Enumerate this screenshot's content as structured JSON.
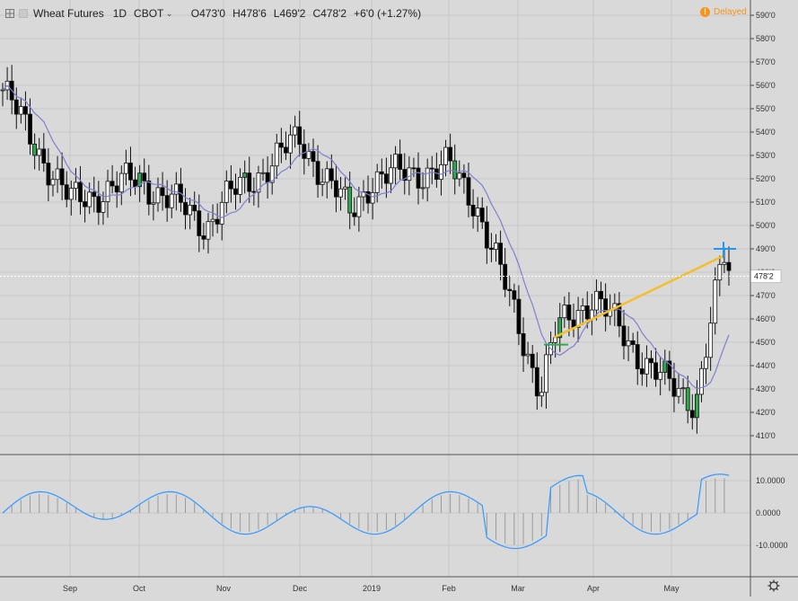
{
  "header": {
    "symbol": "Wheat Futures",
    "interval": "1D",
    "exchange": "CBOT",
    "open": "O473'0",
    "high": "H478'6",
    "low": "L469'2",
    "close": "C478'2",
    "change": "+6'0 (+1.27%)",
    "delayed_label": "Delayed",
    "delayed_icon": "clock-icon"
  },
  "price_label": "478'2",
  "colors": {
    "background": "#d9d9d9",
    "candle_up": "#ffffff",
    "candle_down": "#000000",
    "candle_highlight": "#2fa84f",
    "moving_average": "#7f7fd0",
    "trendline": "#f5bf2a",
    "marker_blue": "#2196f3",
    "marker_green": "#2fa84f",
    "oscillator": "#3399ff",
    "grid": "#c6c6c6",
    "price_line": "#ffffff"
  },
  "chart_data": [
    {
      "type": "candlestick",
      "title": "Wheat Futures 1D CBOT",
      "y_axis_ticks": [
        "590'0",
        "580'0",
        "570'0",
        "560'0",
        "550'0",
        "540'0",
        "530'0",
        "520'0",
        "510'0",
        "500'0",
        "490'0",
        "480'0",
        "470'0",
        "460'0",
        "450'0",
        "440'0",
        "430'0",
        "420'0",
        "410'0"
      ],
      "ylim": [
        410,
        590
      ],
      "x_axis_ticks": [
        "Sep",
        "Oct",
        "Nov",
        "Dec",
        "2019",
        "Feb",
        "Mar",
        "Apr",
        "May"
      ],
      "grid": true,
      "moving_average_visible": true,
      "approx_close_path": [
        {
          "x": "Aug",
          "y": 560
        },
        {
          "x": "Sep",
          "y": 510
        },
        {
          "x": "Oct",
          "y": 520
        },
        {
          "x": "Nov",
          "y": 500
        },
        {
          "x": "Nov",
          "y": 510
        },
        {
          "x": "Dec",
          "y": 537
        },
        {
          "x": "Dec",
          "y": 505
        },
        {
          "x": "2019",
          "y": 520
        },
        {
          "x": "Feb",
          "y": 525
        },
        {
          "x": "Feb",
          "y": 510
        },
        {
          "x": "Mar",
          "y": 430
        },
        {
          "x": "Mar",
          "y": 455
        },
        {
          "x": "Apr",
          "y": 470
        },
        {
          "x": "Apr",
          "y": 450
        },
        {
          "x": "May",
          "y": 430
        },
        {
          "x": "May",
          "y": 425
        },
        {
          "x": "May",
          "y": 487
        },
        {
          "x": "May",
          "y": 478
        }
      ],
      "last_price": 478.25
    },
    {
      "type": "line",
      "title": "",
      "y_axis_ticks": [
        "10.0000",
        "0.0000",
        "-10.0000"
      ],
      "ylim": [
        -18,
        16
      ],
      "x_axis_ticks": [
        "Sep",
        "Oct",
        "Nov",
        "Dec",
        "2019",
        "Feb",
        "Mar",
        "Apr",
        "May"
      ],
      "histogram_visible": true
    }
  ],
  "bottom_right_icon": "gear-icon",
  "top_left_icon": "grid-icon"
}
